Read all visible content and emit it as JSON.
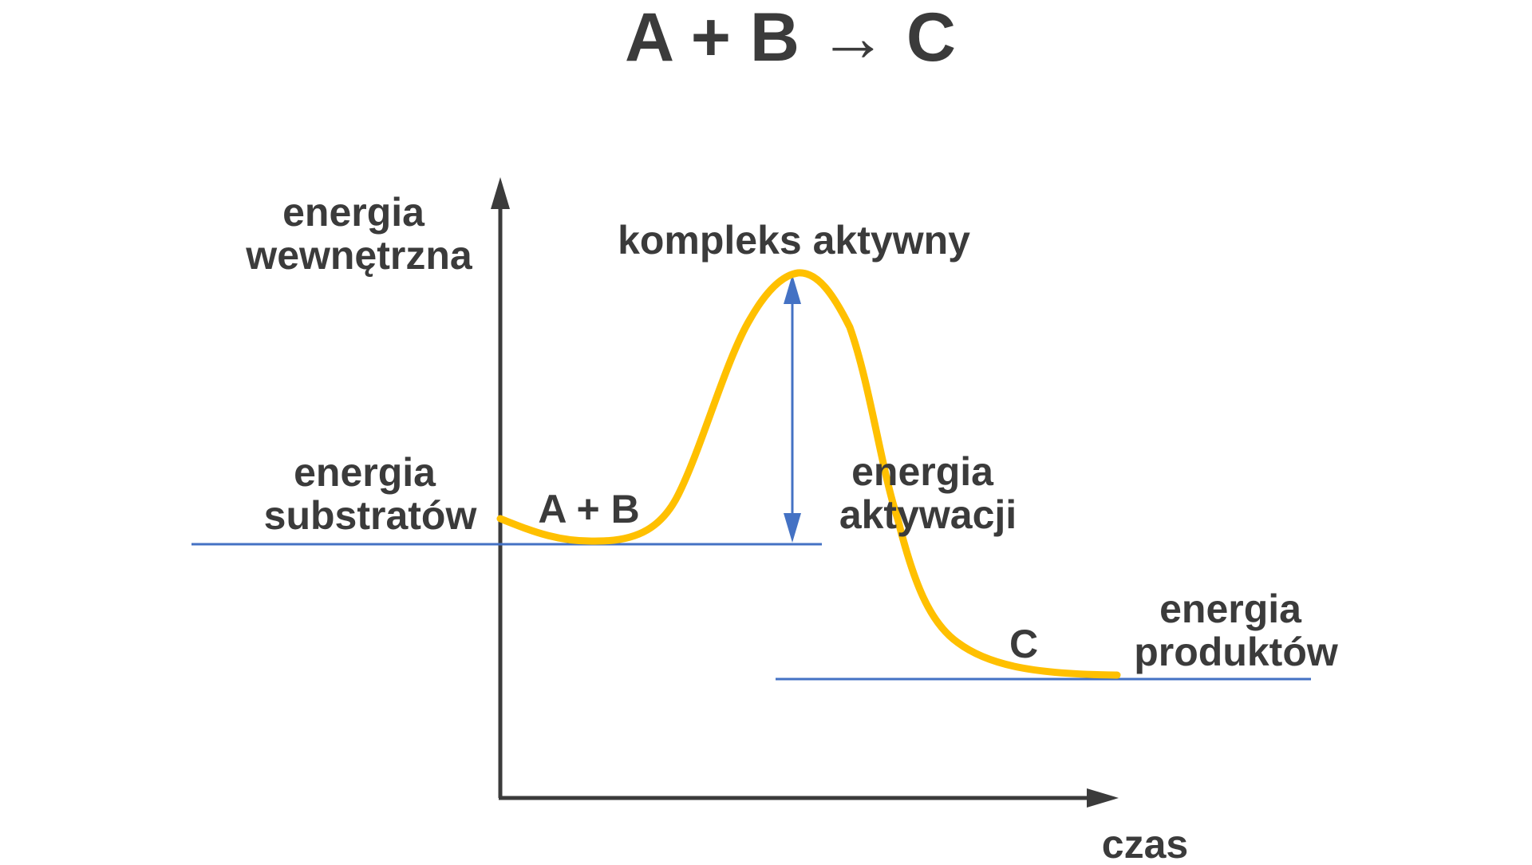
{
  "title": "A + B → C",
  "labels": {
    "y_axis": [
      "energia",
      "wewnętrzna"
    ],
    "x_axis": "czas",
    "activated_complex": "kompleks aktywny",
    "reactants_energy": [
      "energia",
      "substratów"
    ],
    "reactants": "A + B",
    "activation_energy": [
      "energia",
      "aktywacji"
    ],
    "product": "C",
    "products_energy": [
      "energia",
      "produktów"
    ]
  },
  "colors": {
    "axis": "#3b3b3b",
    "text": "#3b3b3b",
    "curve": "#ffc000",
    "level_lines": "#4472c4",
    "activation_arrow": "#4472c4"
  }
}
